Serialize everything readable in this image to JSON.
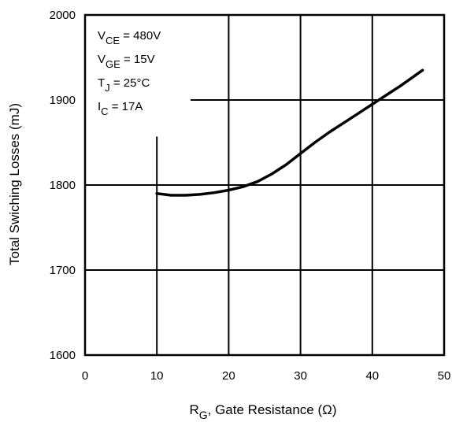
{
  "chart_data": {
    "type": "line",
    "title": "",
    "xlabel": {
      "main": "R",
      "sub": "G",
      "rest": ", Gate Resistance (Ω)"
    },
    "ylabel": "Total Swiching Losses (mJ)",
    "xlim": [
      0,
      50
    ],
    "ylim": [
      1600,
      2000
    ],
    "xticks": [
      "0",
      "10",
      "20",
      "30",
      "40",
      "50"
    ],
    "yticks": [
      "1600",
      "1700",
      "1800",
      "1900",
      "2000"
    ],
    "grid": true,
    "annotations": [
      {
        "main": "V",
        "sub": "CE",
        "rest": " = 480V"
      },
      {
        "main": "V",
        "sub": "GE",
        "rest": " = 15V"
      },
      {
        "main": "T",
        "sub": "J",
        "rest": " = 25°C"
      },
      {
        "main": "I",
        "sub": "C",
        "rest": " = 17A"
      }
    ],
    "series": [
      {
        "x": [
          10,
          11,
          12,
          14,
          16,
          18,
          20,
          22,
          24,
          26,
          28,
          30,
          32,
          34,
          36,
          38,
          40,
          42,
          44,
          47
        ],
        "y": [
          1790,
          1789,
          1788,
          1788,
          1789,
          1791,
          1794,
          1798,
          1804,
          1813,
          1824,
          1837,
          1850,
          1862,
          1873,
          1884,
          1895,
          1906,
          1917,
          1935
        ]
      }
    ]
  }
}
